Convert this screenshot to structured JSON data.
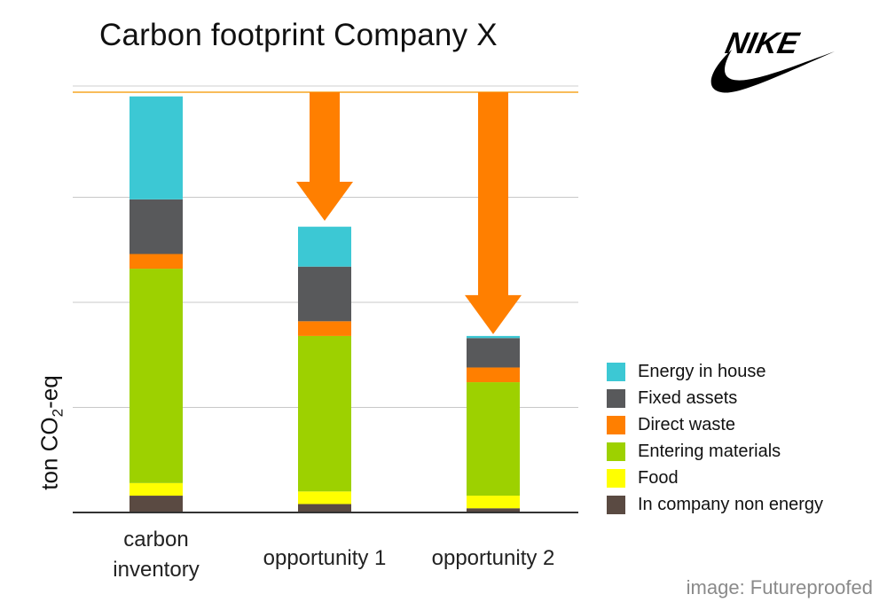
{
  "chart_data": {
    "type": "bar",
    "stacked": true,
    "title": "Carbon footprint Company X",
    "ylabel": "ton CO2-eq",
    "ylabel_parts": {
      "pre": "ton CO",
      "sub": "2",
      "post": "-eq"
    },
    "xlabel": "",
    "ylim": [
      0,
      100
    ],
    "grid": true,
    "legend_position": "right",
    "reference_line": {
      "value": 100,
      "color": "#f5a623"
    },
    "categories": [
      "carbon\ninventory",
      "opportunity 1",
      "opportunity 2"
    ],
    "series": [
      {
        "name": "In company non energy",
        "color": "#5a4a42",
        "values": [
          4.0,
          2.0,
          1.0
        ]
      },
      {
        "name": "Food",
        "color": "#ffff00",
        "values": [
          3.0,
          3.0,
          3.0
        ]
      },
      {
        "name": "Entering materials",
        "color": "#9dd100",
        "values": [
          51.0,
          37.0,
          27.0
        ]
      },
      {
        "name": "Direct waste",
        "color": "#ff7f00",
        "values": [
          3.5,
          3.5,
          3.5
        ]
      },
      {
        "name": "Fixed assets",
        "color": "#58595b",
        "values": [
          13.0,
          13.0,
          7.0
        ]
      },
      {
        "name": "Energy in house",
        "color": "#3cc8d4",
        "values": [
          24.5,
          9.5,
          0.5
        ]
      }
    ],
    "reduction_arrows": [
      {
        "category": "opportunity 1",
        "from": 100,
        "to": 69,
        "color": "#ff7f00"
      },
      {
        "category": "opportunity 2",
        "from": 100,
        "to": 42,
        "color": "#ff7f00"
      }
    ]
  },
  "logo": {
    "name": "NIKE",
    "mark": "swoosh"
  },
  "credit": "image: Futureproofed"
}
